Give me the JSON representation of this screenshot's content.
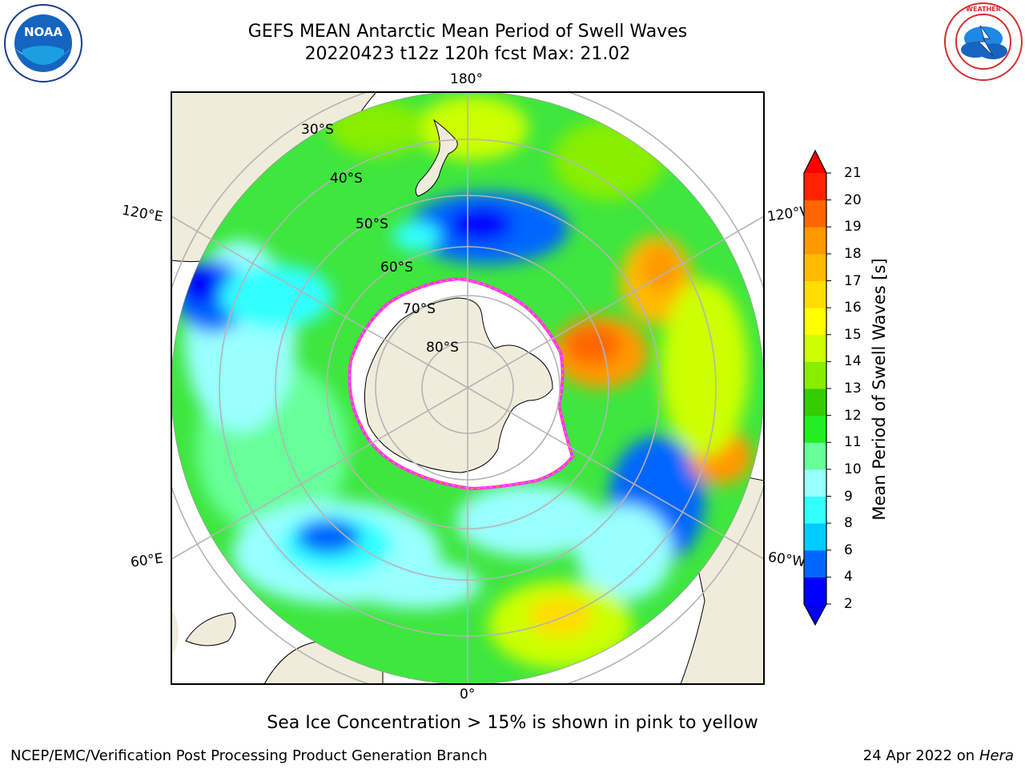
{
  "header": {
    "title_line1": "GEFS MEAN Antarctic Mean Period of Swell Waves",
    "title_line2": "20220423 t12z 120h fcst   Max: 21.02"
  },
  "logos": {
    "left": {
      "name": "noaa-logo",
      "text": "NOAA",
      "ring_text": "NATIONAL OCEANIC AND ATMOSPHERIC ADMINISTRATION · U.S. DEPARTMENT OF COMMERCE"
    },
    "right": {
      "name": "nws-logo",
      "ring_text": "NATIONAL WEATHER SERVICE"
    }
  },
  "map": {
    "projection": "south-polar-stereographic",
    "longitude_labels": {
      "top": "180°",
      "bottom": "0°",
      "left_upper": "120°E",
      "left_lower": "60°E",
      "right_upper": "120°W",
      "right_lower": "60°W"
    },
    "latitude_labels": [
      "30°S",
      "40°S",
      "50°S",
      "60°S",
      "70°S",
      "80°S"
    ],
    "land_color": "#efecdc",
    "sea_ice_edge_colors": [
      "#ff33ff",
      "#ffaa00",
      "#ffff00"
    ]
  },
  "colorbar": {
    "label": "Mean Period of Swell Waves [s]",
    "tick_labels": [
      "2",
      "4",
      "6",
      "8",
      "9",
      "10",
      "11",
      "12",
      "13",
      "14",
      "15",
      "16",
      "17",
      "18",
      "19",
      "20",
      "21"
    ],
    "colors": [
      "#0000ff",
      "#0066ff",
      "#00ccff",
      "#33ffff",
      "#99ffff",
      "#66ff99",
      "#22ee22",
      "#33cc00",
      "#88ee00",
      "#ccff00",
      "#ffff00",
      "#ffdd00",
      "#ffbb00",
      "#ff9900",
      "#ff6600",
      "#ff2200"
    ],
    "under_color": "#0000ee",
    "over_color": "#ff0000"
  },
  "footer": {
    "note": "Sea Ice Concentration > 15% is shown in pink to yellow",
    "producer": "NCEP/EMC/Verification Post Processing Product Generation Branch",
    "date_text": "24 Apr 2022 on ",
    "host": "Hera"
  }
}
